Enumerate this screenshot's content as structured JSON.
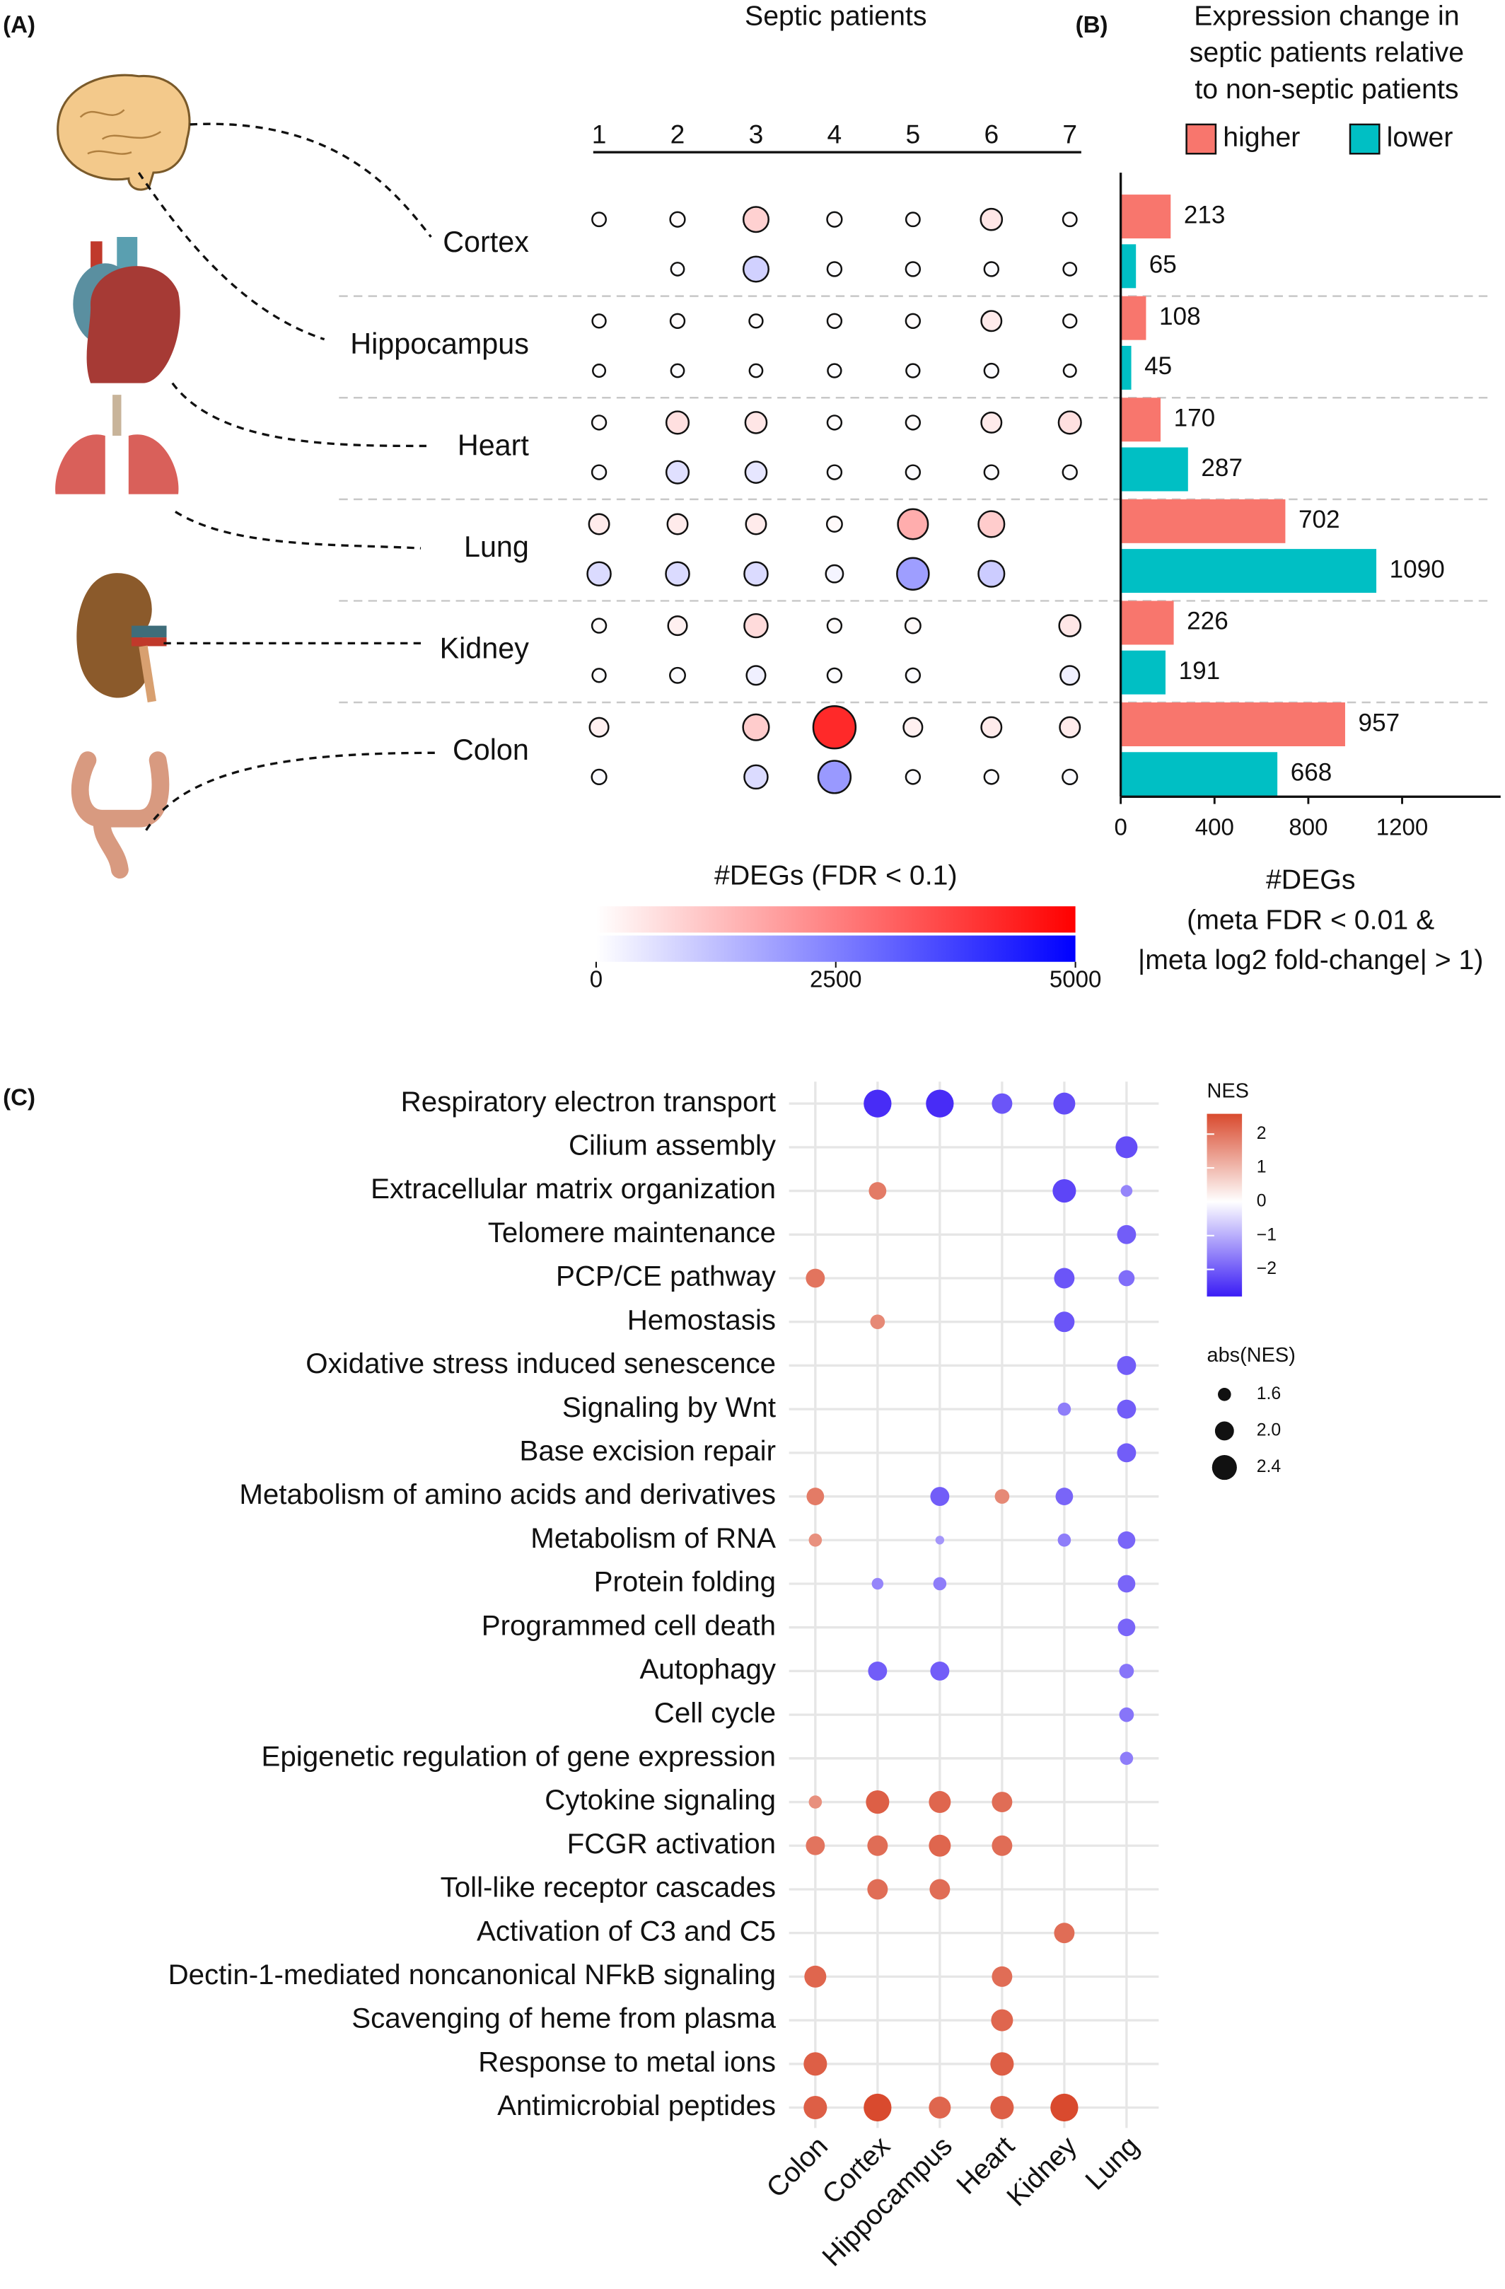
{
  "chart_data": [
    {
      "type": "dot-matrix",
      "label": "(A)",
      "title": "Septic patients",
      "categories": [
        "1",
        "2",
        "3",
        "4",
        "5",
        "6",
        "7"
      ],
      "rows": [
        "Cortex",
        "Hippocampus",
        "Heart",
        "Lung",
        "Kidney",
        "Colon"
      ],
      "series": [
        {
          "color": "#ff0000",
          "values": [
            [
              50,
              80,
              900,
              80,
              50,
              500,
              50
            ],
            [
              40,
              60,
              40,
              60,
              60,
              400,
              40
            ],
            [
              60,
              600,
              500,
              60,
              60,
              400,
              600
            ],
            [
              400,
              400,
              400,
              100,
              1600,
              1000,
              null
            ],
            [
              60,
              300,
              700,
              60,
              100,
              null,
              500
            ],
            [
              300,
              null,
              1000,
              4200,
              300,
              400,
              400
            ]
          ]
        },
        {
          "color": "#0000ff",
          "values": [
            [
              null,
              30,
              900,
              60,
              60,
              60,
              30
            ],
            [
              20,
              30,
              30,
              40,
              40,
              60,
              20
            ],
            [
              60,
              600,
              500,
              60,
              60,
              60,
              60
            ],
            [
              700,
              700,
              700,
              200,
              1900,
              1000,
              null
            ],
            [
              40,
              100,
              300,
              60,
              60,
              null,
              300
            ],
            [
              80,
              null,
              700,
              2000,
              60,
              60,
              80
            ]
          ]
        }
      ],
      "colorbar_title": "#DEGs (FDR < 0.1)",
      "clim": [
        0,
        5000
      ],
      "cticks": [
        0,
        2500,
        5000
      ]
    },
    {
      "type": "hbar",
      "label": "(B)",
      "title": [
        "Expression change in",
        "septic patients relative",
        "to non-septic patients"
      ],
      "series": [
        {
          "name": "higher",
          "color": "#f8766d",
          "values": [
            213,
            108,
            170,
            702,
            226,
            957
          ]
        },
        {
          "name": "lower",
          "color": "#00bfc4",
          "values": [
            65,
            45,
            287,
            1090,
            191,
            668
          ]
        }
      ],
      "xlabel": [
        "#DEGs",
        "(meta FDR < 0.01 &",
        "|meta log2 fold-change| > 1)"
      ],
      "xlim": [
        0,
        1620
      ],
      "xticks": [
        0,
        400,
        800,
        1200
      ]
    },
    {
      "type": "dot-plot",
      "label": "(C)",
      "categories": [
        "Colon",
        "Cortex",
        "Hippocampus",
        "Heart",
        "Kidney",
        "Lung"
      ],
      "rows": [
        "Respiratory electron transport",
        "Cilium assembly",
        "Extracellular matrix organization",
        "Telomere maintenance",
        "PCP/CE pathway",
        "Hemostasis",
        "Oxidative stress induced senescence",
        "Signaling by Wnt",
        "Base excision repair",
        "Metabolism of amino acids and derivatives",
        "Metabolism of RNA",
        "Protein folding",
        "Programmed cell death",
        "Autophagy",
        "Cell cycle",
        "Epigenetic regulation of gene expression",
        "Cytokine signaling",
        "FCGR activation",
        "Toll-like receptor cascades",
        "Activation of C3 and C5",
        "Dectin-1-mediated noncanonical NFkB signaling",
        "Scavenging of heme from plasma",
        "Response to metal ions",
        "Antimicrobial peptides"
      ],
      "values": [
        [
          null,
          -2.6,
          -2.6,
          -2.1,
          -2.2,
          null
        ],
        [
          null,
          null,
          null,
          null,
          null,
          -2.2
        ],
        [
          null,
          1.9,
          null,
          null,
          -2.3,
          -1.5
        ],
        [
          null,
          null,
          null,
          null,
          null,
          -2.0
        ],
        [
          2.0,
          null,
          null,
          null,
          -2.1,
          -1.8
        ],
        [
          null,
          1.7,
          null,
          null,
          -2.1,
          null
        ],
        [
          null,
          null,
          null,
          null,
          null,
          -2.0
        ],
        [
          null,
          null,
          null,
          null,
          -1.6,
          -2.0
        ],
        [
          null,
          null,
          null,
          null,
          null,
          -2.0
        ],
        [
          1.9,
          null,
          -2.0,
          1.7,
          -1.9,
          null
        ],
        [
          1.6,
          null,
          -1.3,
          null,
          -1.6,
          -1.9
        ],
        [
          null,
          -1.5,
          -1.6,
          null,
          null,
          -1.9
        ],
        [
          null,
          null,
          null,
          null,
          null,
          -1.9
        ],
        [
          null,
          -2.0,
          -2.0,
          null,
          null,
          -1.7
        ],
        [
          null,
          null,
          null,
          null,
          null,
          -1.7
        ],
        [
          null,
          null,
          null,
          null,
          null,
          -1.6
        ],
        [
          1.6,
          2.3,
          2.2,
          2.1,
          null,
          null
        ],
        [
          2.0,
          2.1,
          2.2,
          2.1,
          null,
          null
        ],
        [
          null,
          2.1,
          2.1,
          null,
          null,
          null
        ],
        [
          null,
          null,
          null,
          null,
          2.1,
          null
        ],
        [
          2.2,
          null,
          null,
          2.1,
          null,
          null
        ],
        [
          null,
          null,
          null,
          2.2,
          null,
          null
        ],
        [
          2.3,
          null,
          null,
          2.3,
          null,
          null
        ],
        [
          2.3,
          2.6,
          2.2,
          2.3,
          2.6,
          null
        ]
      ],
      "colorbar_title": "NES",
      "clim": [
        -2.8,
        2.6
      ],
      "colors": {
        "low": "#3a1cf5",
        "mid": "#ffffff",
        "high": "#d94a2e"
      },
      "cticks": [
        2,
        1,
        0,
        {
          "value": -1,
          "label": "−1"
        },
        {
          "value": -2,
          "label": "−2"
        }
      ],
      "size_title": "abs(NES)",
      "size_ticks": [
        1.6,
        {
          "value": 2,
          "label": "2.0"
        },
        2.4
      ]
    }
  ]
}
